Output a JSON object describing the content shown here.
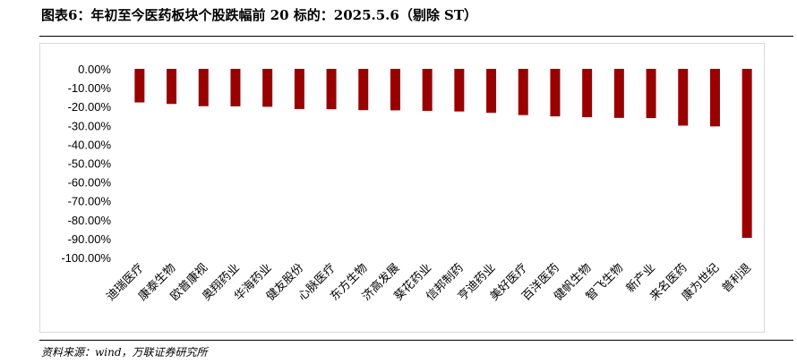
{
  "header": {
    "title": "图表6：年初至今医药板块个股跌幅前 20 标的：2025.5.6（剔除 ST）"
  },
  "footer": {
    "source": "资料来源：wind，万联证券研究所"
  },
  "colors": {
    "bar": "#9b0000"
  },
  "chart_data": {
    "type": "bar",
    "title": "",
    "xlabel": "",
    "ylabel": "",
    "ylim": [
      -100,
      0
    ],
    "yticks": [
      "0.00%",
      "-10.00%",
      "-20.00%",
      "-30.00%",
      "-40.00%",
      "-50.00%",
      "-60.00%",
      "-70.00%",
      "-80.00%",
      "-90.00%",
      "-100.00%"
    ],
    "ytick_values": [
      0,
      -10,
      -20,
      -30,
      -40,
      -50,
      -60,
      -70,
      -80,
      -90,
      -100
    ],
    "categories": [
      "迪瑞医疗",
      "康泰生物",
      "欧普康视",
      "奥翔药业",
      "华海药业",
      "健友股份",
      "心脉医疗",
      "东方生物",
      "济高发展",
      "葵花药业",
      "信邦制药",
      "亨迪药业",
      "美好医疗",
      "百洋医药",
      "健帆生物",
      "智飞生物",
      "新产业",
      "来名医药",
      "康为世纪",
      "普利退"
    ],
    "values": [
      -17.8,
      -18.6,
      -19.8,
      -19.9,
      -20.1,
      -21.3,
      -21.4,
      -21.9,
      -22.0,
      -22.3,
      -22.6,
      -23.3,
      -24.5,
      -25.2,
      -25.6,
      -26.0,
      -26.1,
      -30.1,
      -30.5,
      -89.6
    ],
    "grid": false,
    "legend": "none"
  }
}
